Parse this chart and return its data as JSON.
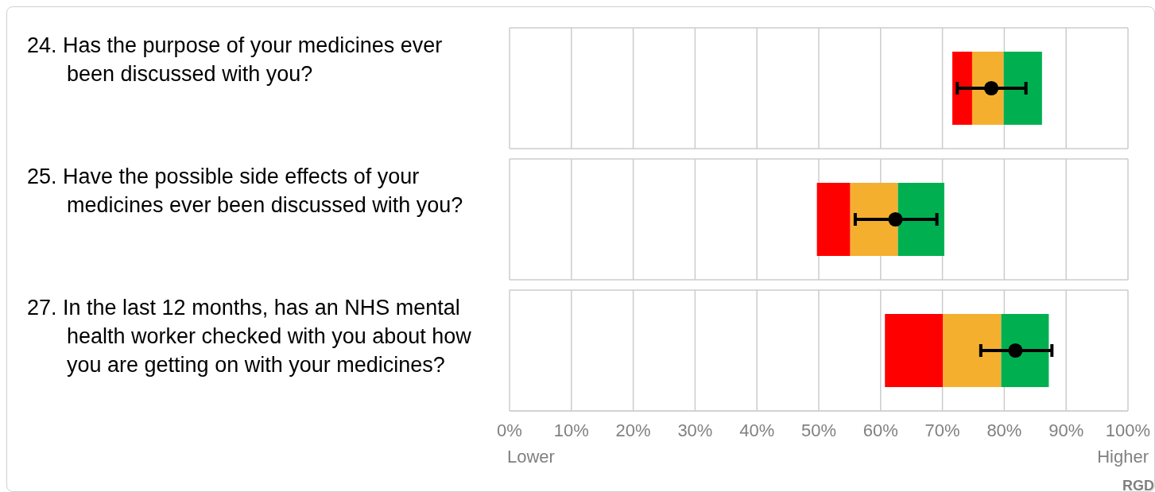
{
  "chart_data": [
    {
      "type": "bar",
      "orientation": "horizontal",
      "categories": [
        "24. Has the purpose of your medicines ever been discussed with you?"
      ],
      "xlim": [
        0,
        100
      ],
      "xticks": [
        0,
        10,
        20,
        30,
        40,
        50,
        60,
        70,
        80,
        90,
        100
      ],
      "tick_labels": "y",
      "grid": "x",
      "series": [
        {
          "color": "#ff0000",
          "base": [
            71.6
          ],
          "values": [
            3.2
          ]
        },
        {
          "color": "#f5af2f",
          "base": [
            74.8
          ],
          "values": [
            5.1
          ]
        },
        {
          "color": "#00b050",
          "base": [
            79.9
          ],
          "values": [
            6.2
          ]
        },
        {
          "type": "scatter",
          "color": "#000000",
          "marker": "circle",
          "x": [
            "24. Has the purpose of your medicines ever been discussed with you?"
          ],
          "values": [
            77.9
          ],
          "errors": [
            [
              72.4,
              83.5
            ]
          ]
        }
      ]
    },
    {
      "type": "bar",
      "orientation": "horizontal",
      "categories": [
        "25. Have the possible side effects of your medicines ever been discussed with you?"
      ],
      "xlim": [
        0,
        100
      ],
      "xticks": [
        0,
        10,
        20,
        30,
        40,
        50,
        60,
        70,
        80,
        90,
        100
      ],
      "tick_labels": "y",
      "grid": "x",
      "series": [
        {
          "color": "#ff0000",
          "base": [
            49.7
          ],
          "values": [
            5.4
          ]
        },
        {
          "color": "#f5af2f",
          "base": [
            55.1
          ],
          "values": [
            7.7
          ]
        },
        {
          "color": "#00b050",
          "base": [
            62.8
          ],
          "values": [
            7.5
          ]
        },
        {
          "type": "scatter",
          "color": "#000000",
          "marker": "circle",
          "x": [
            "25. Have the possible side effects of your medicines ever been discussed with you?"
          ],
          "values": [
            62.4
          ],
          "errors": [
            [
              55.9,
              69.1
            ]
          ]
        }
      ]
    },
    {
      "type": "bar",
      "orientation": "horizontal",
      "categories": [
        "27. In the last 12 months, has an NHS mental health worker checked with you about how you are getting on with your medicines?"
      ],
      "xlim": [
        0,
        100
      ],
      "xticks": [
        {
          "value": 0,
          "label": "0%"
        },
        {
          "value": 10,
          "label": "10%"
        },
        {
          "value": 20,
          "label": "20%"
        },
        {
          "value": 30,
          "label": "30%"
        },
        {
          "value": 40,
          "label": "40%"
        },
        {
          "value": 50,
          "label": "50%"
        },
        {
          "value": 60,
          "label": "60%"
        },
        {
          "value": 70,
          "label": "70%"
        },
        {
          "value": 80,
          "label": "80%"
        },
        {
          "value": 90,
          "label": "90%"
        },
        {
          "value": 100,
          "label": "100%"
        }
      ],
      "grid": "x",
      "series": [
        {
          "color": "#ff0000",
          "base": [
            60.7
          ],
          "values": [
            9.4
          ]
        },
        {
          "color": "#f5af2f",
          "base": [
            70.1
          ],
          "values": [
            9.4
          ]
        },
        {
          "color": "#00b050",
          "base": [
            79.5
          ],
          "values": [
            7.7
          ]
        },
        {
          "type": "scatter",
          "color": "#000000",
          "marker": "circle",
          "x": [
            "27. In the last 12 months, has an NHS mental health worker checked with you about how you are getting on with your medicines?"
          ],
          "values": [
            81.8
          ],
          "errors": [
            [
              76.2,
              87.7
            ]
          ]
        }
      ],
      "annotations": [
        "Lower",
        "Higher",
        "RGD"
      ]
    }
  ]
}
